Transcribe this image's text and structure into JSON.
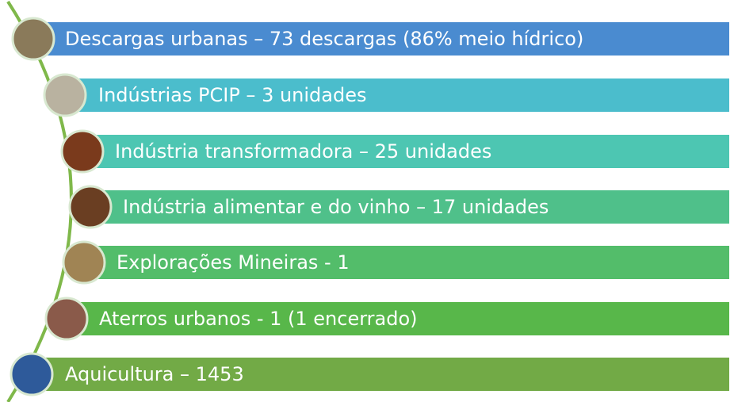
{
  "items": [
    {
      "label": "Descargas urbanas – 73 descargas (86% meio hídrico)"
    },
    {
      "label": "Indústrias PCIP – 3 unidades"
    },
    {
      "label": "Indústria transformadora – 25 unidades"
    },
    {
      "label": "Indústria alimentar e do vinho – 17 unidades"
    },
    {
      "label": "Explorações Mineiras - 1"
    },
    {
      "label": "Aterros urbanos - 1 (1 encerrado)"
    },
    {
      "label": "Aquicultura – 1453"
    }
  ]
}
